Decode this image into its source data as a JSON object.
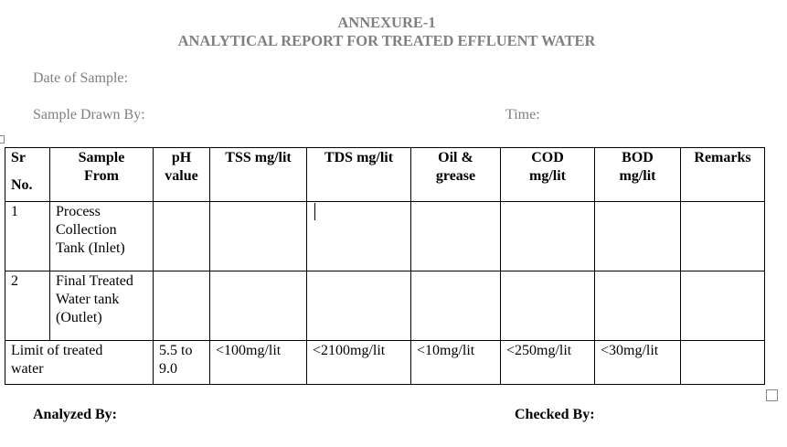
{
  "header": {
    "annexure": "ANNEXURE-1",
    "title": "ANALYTICAL REPORT FOR TREATED EFFLUENT WATER"
  },
  "fields": {
    "date_of_sample": "Date of Sample:",
    "sample_drawn_by": "Sample Drawn By:",
    "time": "Time:"
  },
  "table": {
    "columns": [
      [
        "Sr",
        "No."
      ],
      [
        "Sample",
        "From"
      ],
      [
        "pH",
        "value"
      ],
      [
        "TSS mg/lit"
      ],
      [
        "TDS mg/lit"
      ],
      [
        "Oil &",
        "grease"
      ],
      [
        "COD",
        "mg/lit"
      ],
      [
        "BOD",
        "mg/lit"
      ],
      [
        "Remarks"
      ]
    ],
    "rows": [
      [
        [
          "1"
        ],
        [
          "Process",
          "Collection",
          "Tank (Inlet)"
        ]
      ],
      [
        [
          "2"
        ],
        [
          "Final Treated",
          "Water tank",
          "(Outlet)"
        ]
      ]
    ],
    "limit": {
      "label": [
        "Limit of treated",
        "water"
      ],
      "values": [
        [
          "5.5 to",
          "9.0"
        ],
        [
          "<100mg/lit"
        ],
        [
          "<2100mg/lit"
        ],
        [
          "<10mg/lit"
        ],
        [
          "<250mg/lit"
        ],
        [
          "<30mg/lit"
        ]
      ]
    }
  },
  "footer": {
    "analyzed_by": "Analyzed By:",
    "checked_by": "Checked By:"
  }
}
